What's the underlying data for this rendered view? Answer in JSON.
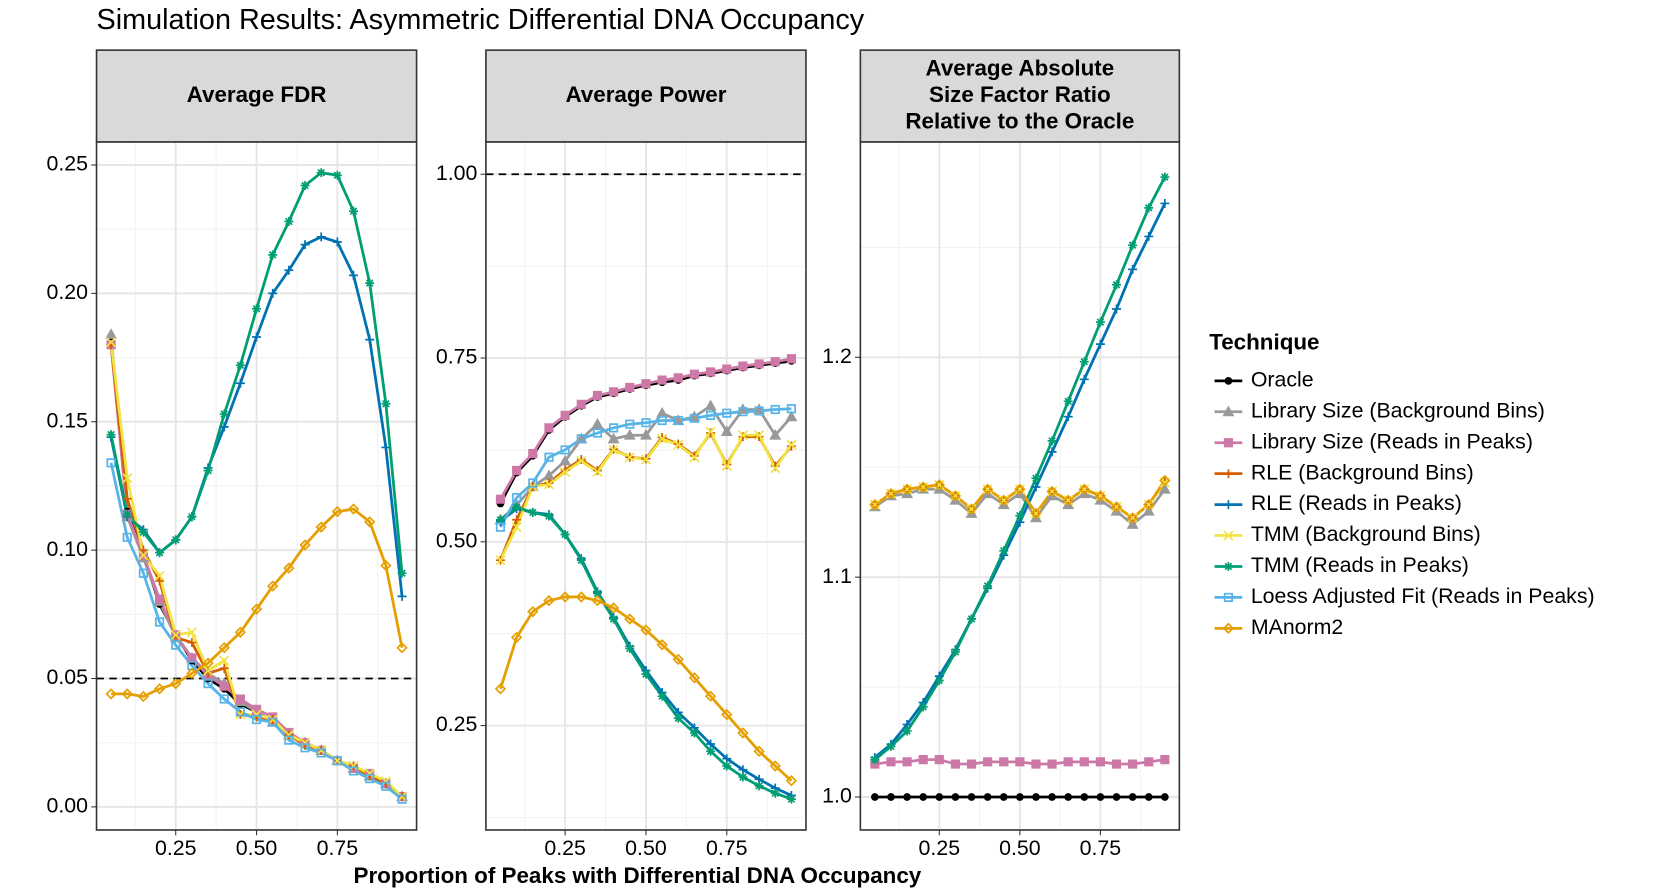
{
  "chart_data": [
    {
      "type": "line",
      "title": "Simulation Results: Asymmetric Differential DNA Occupancy",
      "facet": [
        "Average FDR"
      ],
      "legend_title": "Technique",
      "x": [
        0.05,
        0.1,
        0.15,
        0.2,
        0.25,
        0.3,
        0.35,
        0.4,
        0.45,
        0.5,
        0.55,
        0.6,
        0.65,
        0.7,
        0.75,
        0.8,
        0.85,
        0.9,
        0.95
      ],
      "xlim": [
        0.005,
        0.995
      ],
      "xticks": [
        0.25,
        {
          "value": 0.5,
          "label": "0.50"
        },
        0.75
      ],
      "ylim": [
        -0.009,
        0.259
      ],
      "yticks": [
        {
          "value": 0,
          "label": "0.00"
        },
        0.05,
        {
          "value": 0.1,
          "label": "0.10"
        },
        0.15,
        {
          "value": 0.2,
          "label": "0.20"
        },
        0.25
      ],
      "hline": 0.05,
      "grid": true,
      "series": [
        {
          "name": "Oracle",
          "color": "#000000",
          "marker": "circle",
          "values": [
            0.181,
            0.115,
            0.098,
            0.079,
            0.067,
            0.057,
            0.05,
            0.046,
            0.04,
            0.037,
            0.033,
            0.028,
            0.025,
            0.022,
            0.018,
            0.015,
            0.012,
            0.009,
            0.004
          ]
        },
        {
          "name": "Library Size (Background Bins)",
          "color": "#999999",
          "marker": "triangle",
          "values": [
            0.184,
            0.113,
            0.097,
            0.08,
            0.066,
            0.058,
            0.052,
            0.048,
            0.041,
            0.037,
            0.033,
            0.028,
            0.025,
            0.022,
            0.018,
            0.015,
            0.012,
            0.009,
            0.004
          ]
        },
        {
          "name": "Library Size (Reads in Peaks)",
          "color": "#CC79A7",
          "marker": "square",
          "values": [
            0.18,
            0.114,
            0.098,
            0.081,
            0.067,
            0.058,
            0.051,
            0.047,
            0.042,
            0.038,
            0.035,
            0.029,
            0.025,
            0.022,
            0.018,
            0.015,
            0.013,
            0.009,
            0.004
          ]
        },
        {
          "name": "RLE (Background Bins)",
          "color": "#D55E00",
          "marker": "plus",
          "values": [
            0.18,
            0.12,
            0.1,
            0.088,
            0.066,
            0.064,
            0.052,
            0.054,
            0.036,
            0.035,
            0.034,
            0.028,
            0.024,
            0.022,
            0.018,
            0.016,
            0.012,
            0.009,
            0.004
          ]
        },
        {
          "name": "RLE (Reads in Peaks)",
          "color": "#0072B2",
          "marker": "plus",
          "values": [
            0.144,
            0.113,
            0.108,
            0.099,
            0.104,
            0.113,
            0.132,
            0.148,
            0.165,
            0.183,
            0.2,
            0.209,
            0.219,
            0.222,
            0.22,
            0.207,
            0.182,
            0.14,
            0.082
          ]
        },
        {
          "name": "TMM (Background Bins)",
          "color": "#F0E442",
          "marker": "x",
          "values": [
            0.181,
            0.128,
            0.098,
            0.09,
            0.067,
            0.068,
            0.053,
            0.057,
            0.036,
            0.036,
            0.034,
            0.028,
            0.025,
            0.022,
            0.018,
            0.016,
            0.013,
            0.01,
            0.004
          ]
        },
        {
          "name": "TMM (Reads in Peaks)",
          "color": "#009E73",
          "marker": "asterisk",
          "values": [
            0.145,
            0.114,
            0.107,
            0.099,
            0.104,
            0.113,
            0.131,
            0.153,
            0.172,
            0.194,
            0.215,
            0.228,
            0.242,
            0.247,
            0.246,
            0.232,
            0.204,
            0.157,
            0.091
          ]
        },
        {
          "name": "Loess Adjusted Fit (Reads in Peaks)",
          "color": "#56B4E9",
          "marker": "square-open",
          "values": [
            0.134,
            0.105,
            0.091,
            0.072,
            0.063,
            0.055,
            0.048,
            0.042,
            0.037,
            0.034,
            0.033,
            0.026,
            0.023,
            0.021,
            0.018,
            0.014,
            0.011,
            0.008,
            0.003
          ]
        },
        {
          "name": "MAnorm2",
          "color": "#E69F00",
          "marker": "diamond-open",
          "values": [
            0.044,
            0.044,
            0.043,
            0.046,
            0.048,
            0.052,
            0.056,
            0.062,
            0.068,
            0.077,
            0.086,
            0.093,
            0.102,
            0.109,
            0.115,
            0.116,
            0.111,
            0.094,
            0.062
          ]
        }
      ]
    },
    {
      "type": "line",
      "facet": [
        "Average Power"
      ],
      "xlabel": "Proportion of Peaks with Differential DNA Occupancy",
      "x": [
        0.05,
        0.1,
        0.15,
        0.2,
        0.25,
        0.3,
        0.35,
        0.4,
        0.45,
        0.5,
        0.55,
        0.6,
        0.65,
        0.7,
        0.75,
        0.8,
        0.85,
        0.9,
        0.95
      ],
      "xlim": [
        0.005,
        0.995
      ],
      "xticks": [
        0.25,
        {
          "value": 0.5,
          "label": "0.50"
        },
        0.75
      ],
      "ylim": [
        0.108,
        1.044
      ],
      "yticks": [
        0.25,
        {
          "value": 0.5,
          "label": "0.50"
        },
        0.75,
        {
          "value": 1,
          "label": "1.00"
        }
      ],
      "hline": 1,
      "grid": true,
      "series": [
        {
          "name": "Oracle",
          "color": "#000000",
          "marker": "circle",
          "values": [
            0.552,
            0.594,
            0.617,
            0.652,
            0.67,
            0.685,
            0.697,
            0.702,
            0.708,
            0.713,
            0.717,
            0.72,
            0.726,
            0.729,
            0.733,
            0.737,
            0.74,
            0.743,
            0.746
          ]
        },
        {
          "name": "Library Size (Background Bins)",
          "color": "#999999",
          "marker": "triangle",
          "values": [
            0.53,
            0.55,
            0.575,
            0.59,
            0.61,
            0.64,
            0.66,
            0.64,
            0.645,
            0.645,
            0.675,
            0.665,
            0.67,
            0.685,
            0.65,
            0.68,
            0.68,
            0.645,
            0.67
          ]
        },
        {
          "name": "Library Size (Reads in Peaks)",
          "color": "#CC79A7",
          "marker": "square",
          "values": [
            0.558,
            0.597,
            0.62,
            0.655,
            0.672,
            0.687,
            0.699,
            0.704,
            0.71,
            0.715,
            0.72,
            0.723,
            0.728,
            0.731,
            0.735,
            0.739,
            0.742,
            0.745,
            0.749
          ]
        },
        {
          "name": "RLE (Background Bins)",
          "color": "#D55E00",
          "marker": "plus",
          "values": [
            0.475,
            0.53,
            0.575,
            0.58,
            0.598,
            0.612,
            0.597,
            0.626,
            0.615,
            0.613,
            0.642,
            0.633,
            0.617,
            0.648,
            0.605,
            0.643,
            0.643,
            0.603,
            0.63
          ]
        },
        {
          "name": "RLE (Reads in Peaks)",
          "color": "#0072B2",
          "marker": "plus",
          "values": [
            0.528,
            0.545,
            0.54,
            0.537,
            0.51,
            0.477,
            0.432,
            0.397,
            0.358,
            0.325,
            0.295,
            0.268,
            0.247,
            0.225,
            0.205,
            0.19,
            0.177,
            0.165,
            0.155
          ]
        },
        {
          "name": "TMM (Background Bins)",
          "color": "#F0E442",
          "marker": "x",
          "values": [
            0.475,
            0.52,
            0.575,
            0.578,
            0.595,
            0.61,
            0.595,
            0.625,
            0.615,
            0.612,
            0.64,
            0.632,
            0.615,
            0.65,
            0.603,
            0.645,
            0.645,
            0.6,
            0.632
          ]
        },
        {
          "name": "TMM (Reads in Peaks)",
          "color": "#009E73",
          "marker": "asterisk",
          "values": [
            0.53,
            0.547,
            0.54,
            0.535,
            0.51,
            0.475,
            0.43,
            0.395,
            0.355,
            0.32,
            0.29,
            0.26,
            0.24,
            0.215,
            0.195,
            0.18,
            0.168,
            0.158,
            0.15
          ]
        },
        {
          "name": "Loess Adjusted Fit (Reads in Peaks)",
          "color": "#56B4E9",
          "marker": "square-open",
          "values": [
            0.52,
            0.56,
            0.58,
            0.615,
            0.625,
            0.64,
            0.648,
            0.655,
            0.66,
            0.662,
            0.665,
            0.665,
            0.668,
            0.672,
            0.675,
            0.677,
            0.678,
            0.68,
            0.681
          ]
        },
        {
          "name": "MAnorm2",
          "color": "#E69F00",
          "marker": "diamond-open",
          "values": [
            0.3,
            0.37,
            0.405,
            0.42,
            0.425,
            0.425,
            0.42,
            0.41,
            0.395,
            0.38,
            0.36,
            0.34,
            0.315,
            0.29,
            0.265,
            0.24,
            0.215,
            0.195,
            0.175
          ]
        }
      ]
    },
    {
      "type": "line",
      "facet": [
        "Average Absolute",
        "Size Factor Ratio",
        "Relative to the Oracle"
      ],
      "x": [
        0.05,
        0.1,
        0.15,
        0.2,
        0.25,
        0.3,
        0.35,
        0.4,
        0.45,
        0.5,
        0.55,
        0.6,
        0.65,
        0.7,
        0.75,
        0.8,
        0.85,
        0.9,
        0.95
      ],
      "xlim": [
        0.005,
        0.995
      ],
      "xticks": [
        0.25,
        {
          "value": 0.5,
          "label": "0.50"
        },
        0.75
      ],
      "ylim": [
        0.985,
        1.298
      ],
      "yticks": [
        {
          "value": 1,
          "label": "1.0"
        },
        1.1,
        1.2
      ],
      "grid": true,
      "series": [
        {
          "name": "Oracle",
          "color": "#000000",
          "marker": "circle",
          "values": [
            1,
            1,
            1,
            1,
            1,
            1,
            1,
            1,
            1,
            1,
            1,
            1,
            1,
            1,
            1,
            1,
            1,
            1,
            1
          ]
        },
        {
          "name": "Library Size (Background Bins)",
          "color": "#999999",
          "marker": "triangle",
          "values": [
            1.132,
            1.137,
            1.138,
            1.14,
            1.14,
            1.135,
            1.129,
            1.138,
            1.133,
            1.138,
            1.127,
            1.137,
            1.133,
            1.138,
            1.135,
            1.13,
            1.124,
            1.13,
            1.14
          ]
        },
        {
          "name": "Library Size (Reads in Peaks)",
          "color": "#CC79A7",
          "marker": "square",
          "values": [
            1.015,
            1.016,
            1.016,
            1.017,
            1.017,
            1.015,
            1.015,
            1.016,
            1.016,
            1.016,
            1.015,
            1.015,
            1.016,
            1.016,
            1.016,
            1.015,
            1.015,
            1.016,
            1.017
          ]
        },
        {
          "name": "RLE (Background Bins)",
          "color": "#D55E00",
          "marker": "plus",
          "values": [
            1.133,
            1.138,
            1.14,
            1.141,
            1.142,
            1.137,
            1.131,
            1.14,
            1.135,
            1.14,
            1.129,
            1.139,
            1.135,
            1.14,
            1.137,
            1.132,
            1.127,
            1.133,
            1.144
          ]
        },
        {
          "name": "RLE (Reads in Peaks)",
          "color": "#0072B2",
          "marker": "plus",
          "values": [
            1.018,
            1.024,
            1.033,
            1.043,
            1.055,
            1.067,
            1.081,
            1.095,
            1.11,
            1.125,
            1.141,
            1.157,
            1.173,
            1.19,
            1.206,
            1.222,
            1.24,
            1.255,
            1.27
          ]
        },
        {
          "name": "TMM (Background Bins)",
          "color": "#F0E442",
          "marker": "x",
          "values": [
            1.133,
            1.138,
            1.14,
            1.141,
            1.142,
            1.137,
            1.131,
            1.14,
            1.135,
            1.14,
            1.129,
            1.139,
            1.135,
            1.14,
            1.137,
            1.132,
            1.127,
            1.133,
            1.143
          ]
        },
        {
          "name": "TMM (Reads in Peaks)",
          "color": "#009E73",
          "marker": "asterisk",
          "values": [
            1.017,
            1.023,
            1.03,
            1.041,
            1.053,
            1.066,
            1.081,
            1.096,
            1.112,
            1.128,
            1.145,
            1.162,
            1.18,
            1.198,
            1.216,
            1.233,
            1.251,
            1.268,
            1.282
          ]
        },
        {
          "name": "MAnorm2",
          "color": "#E69F00",
          "marker": "diamond-open",
          "values": [
            1.133,
            1.138,
            1.14,
            1.141,
            1.142,
            1.137,
            1.131,
            1.14,
            1.135,
            1.14,
            1.129,
            1.139,
            1.135,
            1.14,
            1.137,
            1.132,
            1.127,
            1.133,
            1.144
          ]
        }
      ]
    }
  ]
}
